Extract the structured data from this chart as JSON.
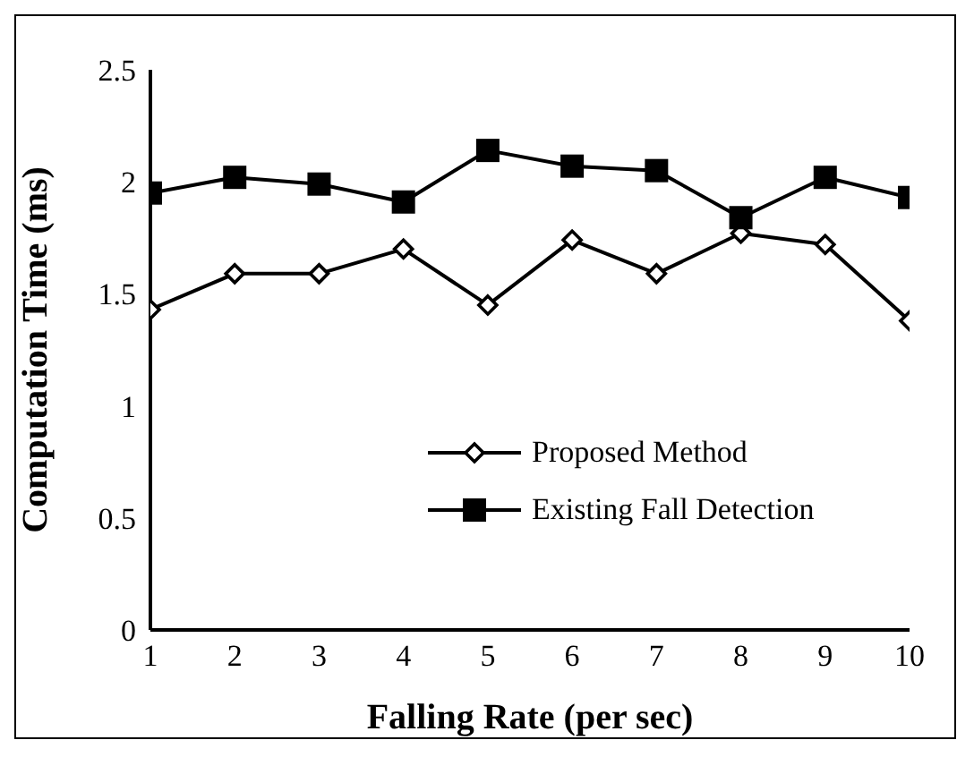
{
  "chart_data": {
    "type": "line",
    "xlabel": "Falling Rate (per sec)",
    "ylabel": "Computation Time (ms)",
    "x": [
      1,
      2,
      3,
      4,
      5,
      6,
      7,
      8,
      9,
      10
    ],
    "xlim": [
      1,
      10
    ],
    "xticks": [
      1,
      2,
      3,
      4,
      5,
      6,
      7,
      8,
      9,
      10
    ],
    "ylim": [
      0,
      2.5
    ],
    "yticks": [
      0,
      0.5,
      1,
      1.5,
      2,
      2.5
    ],
    "grid": false,
    "legend": "bottom right",
    "series": [
      {
        "name": "Proposed Method",
        "color": "#000000",
        "marker": "diamond",
        "values": [
          1.43,
          1.59,
          1.59,
          1.7,
          1.45,
          1.74,
          1.59,
          1.77,
          1.72,
          1.38
        ]
      },
      {
        "name": "Existing Fall Detection",
        "color": "#000000",
        "marker": "square",
        "values": [
          1.95,
          2.02,
          1.99,
          1.91,
          2.14,
          2.07,
          2.05,
          1.84,
          2.02,
          1.93
        ]
      }
    ]
  }
}
